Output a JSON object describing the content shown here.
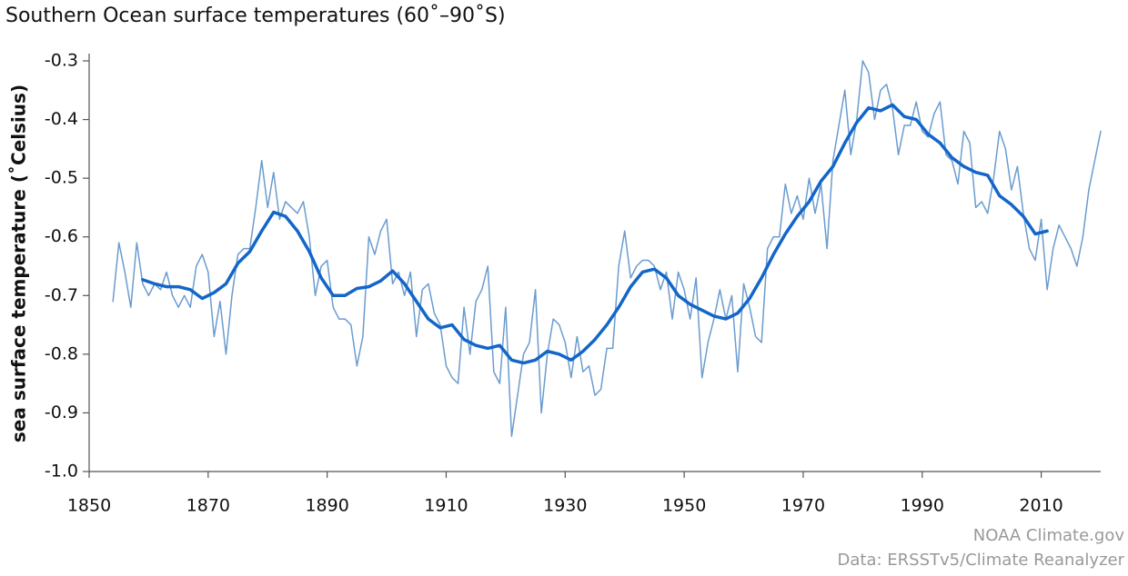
{
  "chart_data": {
    "type": "line",
    "title": "Southern Ocean surface temperatures (60˚–90˚S)",
    "y_label": "sea surface temperature (˚Celsius)",
    "credits": [
      "NOAA Climate.gov",
      "Data: ERSSTv5/Climate Reanalyzer"
    ],
    "xlim": [
      1850,
      2020
    ],
    "xticks": [
      1850,
      1870,
      1890,
      1910,
      1930,
      1950,
      1970,
      1990,
      2010
    ],
    "ylim": [
      -1.0,
      -0.3
    ],
    "yticks": [
      -0.3,
      -0.4,
      -0.5,
      -0.6,
      -0.7,
      -0.8,
      -0.9,
      {
        "value": -1.0,
        "label": "-1.0"
      }
    ],
    "grid": false,
    "series": [
      {
        "color": "#6a9ccf",
        "width": 1.5,
        "x": [
          1854,
          1855,
          1856,
          1857,
          1858,
          1859,
          1860,
          1861,
          1862,
          1863,
          1864,
          1865,
          1866,
          1867,
          1868,
          1869,
          1870,
          1871,
          1872,
          1873,
          1874,
          1875,
          1876,
          1877,
          1878,
          1879,
          1880,
          1881,
          1882,
          1883,
          1884,
          1885,
          1886,
          1887,
          1888,
          1889,
          1890,
          1891,
          1892,
          1893,
          1894,
          1895,
          1896,
          1897,
          1898,
          1899,
          1900,
          1901,
          1902,
          1903,
          1904,
          1905,
          1906,
          1907,
          1908,
          1909,
          1910,
          1911,
          1912,
          1913,
          1914,
          1915,
          1916,
          1917,
          1918,
          1919,
          1920,
          1921,
          1922,
          1923,
          1924,
          1925,
          1926,
          1927,
          1928,
          1929,
          1930,
          1931,
          1932,
          1933,
          1934,
          1935,
          1936,
          1937,
          1938,
          1939,
          1940,
          1941,
          1942,
          1943,
          1944,
          1945,
          1946,
          1947,
          1948,
          1949,
          1950,
          1951,
          1952,
          1953,
          1954,
          1955,
          1956,
          1957,
          1958,
          1959,
          1960,
          1961,
          1962,
          1963,
          1964,
          1965,
          1966,
          1967,
          1968,
          1969,
          1970,
          1971,
          1972,
          1973,
          1974,
          1975,
          1976,
          1977,
          1978,
          1979,
          1980,
          1981,
          1982,
          1983,
          1984,
          1985,
          1986,
          1987,
          1988,
          1989,
          1990,
          1991,
          1992,
          1993,
          1994,
          1995,
          1996,
          1997,
          1998,
          1999,
          2000,
          2001,
          2002,
          2003,
          2004,
          2005,
          2006,
          2007,
          2008,
          2009,
          2010,
          2011,
          2012,
          2013,
          2014,
          2015,
          2016,
          2017,
          2018,
          2019,
          2020
        ],
        "values": [
          -0.71,
          -0.61,
          -0.66,
          -0.72,
          -0.61,
          -0.68,
          -0.7,
          -0.68,
          -0.69,
          -0.66,
          -0.7,
          -0.72,
          -0.7,
          -0.72,
          -0.65,
          -0.63,
          -0.66,
          -0.77,
          -0.71,
          -0.8,
          -0.7,
          -0.63,
          -0.62,
          -0.62,
          -0.55,
          -0.47,
          -0.55,
          -0.49,
          -0.57,
          -0.54,
          -0.55,
          -0.56,
          -0.54,
          -0.6,
          -0.7,
          -0.65,
          -0.64,
          -0.72,
          -0.74,
          -0.74,
          -0.75,
          -0.82,
          -0.77,
          -0.6,
          -0.63,
          -0.59,
          -0.57,
          -0.68,
          -0.66,
          -0.7,
          -0.66,
          -0.77,
          -0.69,
          -0.68,
          -0.73,
          -0.75,
          -0.82,
          -0.84,
          -0.85,
          -0.72,
          -0.8,
          -0.71,
          -0.69,
          -0.65,
          -0.83,
          -0.85,
          -0.72,
          -0.94,
          -0.87,
          -0.8,
          -0.78,
          -0.69,
          -0.9,
          -0.8,
          -0.74,
          -0.75,
          -0.78,
          -0.84,
          -0.77,
          -0.83,
          -0.82,
          -0.87,
          -0.86,
          -0.79,
          -0.79,
          -0.65,
          -0.59,
          -0.67,
          -0.65,
          -0.64,
          -0.64,
          -0.65,
          -0.69,
          -0.66,
          -0.74,
          -0.66,
          -0.69,
          -0.74,
          -0.67,
          -0.84,
          -0.78,
          -0.74,
          -0.69,
          -0.74,
          -0.7,
          -0.83,
          -0.68,
          -0.72,
          -0.77,
          -0.78,
          -0.62,
          -0.6,
          -0.6,
          -0.51,
          -0.56,
          -0.53,
          -0.57,
          -0.5,
          -0.56,
          -0.51,
          -0.62,
          -0.47,
          -0.41,
          -0.35,
          -0.46,
          -0.4,
          -0.3,
          -0.32,
          -0.4,
          -0.35,
          -0.34,
          -0.38,
          -0.46,
          -0.41,
          -0.41,
          -0.37,
          -0.42,
          -0.43,
          -0.39,
          -0.37,
          -0.46,
          -0.47,
          -0.51,
          -0.42,
          -0.44,
          -0.55,
          -0.54,
          -0.56,
          -0.5,
          -0.42,
          -0.45,
          -0.52,
          -0.48,
          -0.56,
          -0.62,
          -0.64,
          -0.57,
          -0.69,
          -0.62,
          -0.58,
          -0.6,
          -0.62,
          -0.65,
          -0.6,
          -0.52,
          -0.47,
          -0.42
        ]
      },
      {
        "color": "#1366c8",
        "width": 3.5,
        "x": [
          1859,
          1861,
          1863,
          1865,
          1867,
          1869,
          1871,
          1873,
          1875,
          1877,
          1879,
          1881,
          1883,
          1885,
          1887,
          1889,
          1891,
          1893,
          1895,
          1897,
          1899,
          1901,
          1903,
          1905,
          1907,
          1909,
          1911,
          1913,
          1915,
          1917,
          1919,
          1921,
          1923,
          1925,
          1927,
          1929,
          1931,
          1933,
          1935,
          1937,
          1939,
          1941,
          1943,
          1945,
          1947,
          1949,
          1951,
          1953,
          1955,
          1957,
          1959,
          1961,
          1963,
          1965,
          1967,
          1969,
          1971,
          1973,
          1975,
          1977,
          1979,
          1981,
          1983,
          1985,
          1987,
          1989,
          1991,
          1993,
          1995,
          1997,
          1999,
          2001,
          2003,
          2005,
          2007,
          2009,
          2011
        ],
        "values": [
          -0.673,
          -0.68,
          -0.685,
          -0.685,
          -0.69,
          -0.705,
          -0.695,
          -0.68,
          -0.645,
          -0.625,
          -0.59,
          -0.558,
          -0.565,
          -0.59,
          -0.625,
          -0.67,
          -0.7,
          -0.7,
          -0.688,
          -0.685,
          -0.675,
          -0.658,
          -0.68,
          -0.71,
          -0.74,
          -0.755,
          -0.75,
          -0.775,
          -0.785,
          -0.79,
          -0.785,
          -0.81,
          -0.815,
          -0.81,
          -0.795,
          -0.8,
          -0.81,
          -0.795,
          -0.775,
          -0.75,
          -0.72,
          -0.685,
          -0.66,
          -0.655,
          -0.67,
          -0.7,
          -0.715,
          -0.725,
          -0.735,
          -0.74,
          -0.73,
          -0.705,
          -0.67,
          -0.63,
          -0.595,
          -0.565,
          -0.54,
          -0.505,
          -0.48,
          -0.44,
          -0.405,
          -0.38,
          -0.385,
          -0.375,
          -0.395,
          -0.4,
          -0.425,
          -0.44,
          -0.465,
          -0.48,
          -0.49,
          -0.495,
          -0.53,
          -0.545,
          -0.565,
          -0.595,
          -0.59
        ]
      }
    ]
  }
}
